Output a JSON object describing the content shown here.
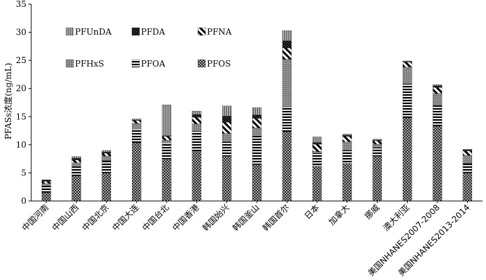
{
  "chart_data": {
    "type": "bar",
    "stacked": true,
    "title": "",
    "xlabel": "",
    "ylabel": "PFASs浓度(ng/mL)",
    "ylim": [
      0,
      35
    ],
    "yticks": [
      0,
      5,
      10,
      15,
      20,
      25,
      30,
      35
    ],
    "legend_position": "top-left",
    "categories": [
      "中国河南",
      "中国山西",
      "中国北京",
      "中国大连",
      "中国台北",
      "中国香港",
      "韩国始兴",
      "韩国釜山",
      "韩国首尔",
      "日本",
      "加拿大",
      "挪威",
      "澳大利亚",
      "美国NHANES2007-2008",
      "美国NHANES2013-2014"
    ],
    "series": [
      {
        "name": "PFOS",
        "pattern": "dots",
        "values": [
          1.5,
          4.5,
          5.0,
          10.3,
          7.5,
          8.8,
          8.0,
          6.5,
          12.3,
          6.2,
          6.7,
          8.0,
          14.8,
          13.3,
          5.0
        ]
      },
      {
        "name": "PFOA",
        "pattern": "hlines",
        "values": [
          1.3,
          1.6,
          2.2,
          2.5,
          2.8,
          3.6,
          2.5,
          5.2,
          4.4,
          2.3,
          2.3,
          1.5,
          6.0,
          3.7,
          1.7
        ]
      },
      {
        "name": "PFHxS",
        "pattern": "gray",
        "values": [
          0.3,
          0.7,
          0.8,
          1.0,
          0.5,
          1.3,
          1.5,
          1.3,
          8.5,
          0.3,
          1.5,
          0.6,
          3.0,
          2.1,
          1.4
        ]
      },
      {
        "name": "PFNA",
        "pattern": "diag",
        "values": [
          0.4,
          0.5,
          0.5,
          0.5,
          0.7,
          1.2,
          2.0,
          1.7,
          2.0,
          1.3,
          1.0,
          0.6,
          0.9,
          1.1,
          0.8
        ]
      },
      {
        "name": "PFDA",
        "pattern": "black",
        "values": [
          0.2,
          0.3,
          0.2,
          0.1,
          0.1,
          0.5,
          1.1,
          0.6,
          1.3,
          0.3,
          0.2,
          0.1,
          0.1,
          0.3,
          0.2
        ]
      },
      {
        "name": "PFUnDA",
        "pattern": "vlines",
        "values": [
          0.1,
          0.3,
          0.3,
          0.2,
          5.5,
          0.6,
          1.8,
          1.3,
          1.8,
          1.0,
          0.2,
          0.2,
          0.1,
          0.2,
          0.1
        ]
      }
    ],
    "legend": [
      {
        "name": "PFUnDA",
        "pattern": "vlines"
      },
      {
        "name": "PFDA",
        "pattern": "black"
      },
      {
        "name": "PFNA",
        "pattern": "diag"
      },
      {
        "name": "PFHxS",
        "pattern": "gray"
      },
      {
        "name": "PFOA",
        "pattern": "hlines"
      },
      {
        "name": "PFOS",
        "pattern": "dots"
      }
    ]
  }
}
